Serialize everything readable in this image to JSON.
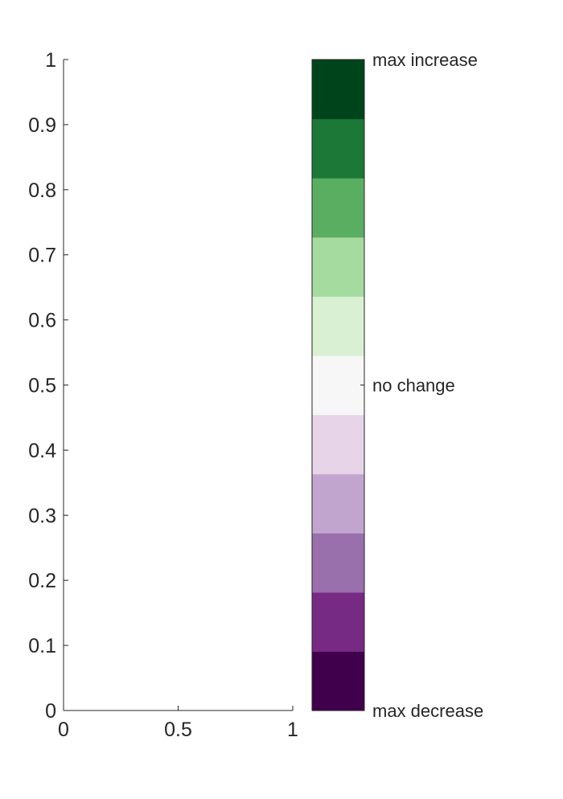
{
  "chart_data": {
    "type": "heatmap",
    "title": "",
    "xlabel": "",
    "ylabel": "",
    "xlim": [
      0,
      1
    ],
    "ylim": [
      0,
      1
    ],
    "grid": false,
    "xticks": [
      0,
      0.5,
      1
    ],
    "xtick_labels": [
      "0",
      "0.5",
      "1"
    ],
    "yticks": [
      0,
      0.1,
      0.2,
      0.3,
      0.4,
      0.5,
      0.6,
      0.7,
      0.8,
      0.9,
      1
    ],
    "ytick_labels": [
      "0",
      "0.1",
      "0.2",
      "0.3",
      "0.4",
      "0.5",
      "0.6",
      "0.7",
      "0.8",
      "0.9",
      "1"
    ],
    "values": [],
    "colorbar": {
      "colors_bottom_to_top": [
        "#40004b",
        "#762a83",
        "#9970ab",
        "#c2a5cf",
        "#e7d4e8",
        "#f7f7f7",
        "#d9f0d3",
        "#a6dba0",
        "#5aae61",
        "#1b7837",
        "#00441b"
      ],
      "labels": [
        {
          "position": 0,
          "text": "max decrease"
        },
        {
          "position": 0.5,
          "text": "no change"
        },
        {
          "position": 1,
          "text": "max increase"
        }
      ]
    }
  }
}
